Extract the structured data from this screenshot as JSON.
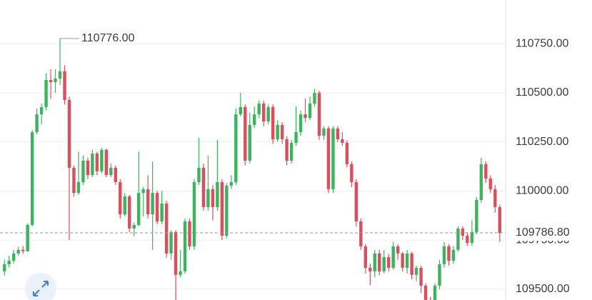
{
  "chart_data": {
    "type": "candlestick",
    "up_color": "#3bb55c",
    "down_color": "#e14c5c",
    "ylim": [
      109445,
      110972
    ],
    "yticks": [
      {
        "value": 109500,
        "label": "109500.00"
      },
      {
        "value": 109750,
        "label": "109750.00"
      },
      {
        "value": 110000,
        "label": "110000.00"
      },
      {
        "value": 110250,
        "label": "110250.00"
      },
      {
        "value": 110500,
        "label": "110500.00"
      },
      {
        "value": 110750,
        "label": "110750.00"
      }
    ],
    "grid": true,
    "current_price": {
      "value": 109786.8,
      "label": "109786.80"
    },
    "high_annotation": {
      "value": 110776,
      "label": "110776.00"
    },
    "open": [
      109591,
      109627,
      109645,
      109682,
      109700,
      109693,
      109827,
      110299,
      110390,
      110427,
      110565,
      110554,
      110572,
      110609,
      110463,
      110118,
      109990,
      110045,
      110154,
      110081,
      110190,
      110100,
      110209,
      110081,
      110118,
      110045,
      109881,
      109972,
      109809,
      109827,
      109990,
      110009,
      109881,
      109990,
      109845,
      109936,
      109682,
      109791,
      109573,
      109591,
      109845,
      109718,
      110045,
      110118,
      109918,
      110009,
      109918,
      110045,
      109772,
      110027,
      110045,
      110390,
      110427,
      110154,
      110336,
      110390,
      110445,
      110354,
      110427,
      110263,
      110336,
      110263,
      110154,
      110245,
      110299,
      110390,
      110372,
      110445,
      110499,
      110281,
      110318,
      110009,
      110318,
      110263,
      110245,
      110136,
      110045,
      109845,
      109718,
      109609,
      109591,
      109682,
      109591,
      109663,
      109609,
      109718,
      109682,
      109609,
      109682,
      109573,
      109609,
      109518,
      109445,
      109409,
      109518,
      109627,
      109718,
      109645,
      109700,
      109809,
      109772,
      109736,
      109791,
      109954,
      110136,
      110063,
      110009,
      109918
    ],
    "high": [
      109650,
      109670,
      109700,
      109715,
      109720,
      109835,
      110310,
      110420,
      110445,
      110600,
      110620,
      110620,
      110776,
      110640,
      110480,
      110130,
      110200,
      110180,
      110170,
      110210,
      110200,
      110220,
      110215,
      110140,
      110130,
      110060,
      109990,
      109980,
      109840,
      110200,
      110020,
      110080,
      110150,
      110000,
      110000,
      109950,
      109800,
      109800,
      109700,
      109860,
      109860,
      110060,
      110270,
      110140,
      110180,
      110030,
      110260,
      110060,
      110040,
      110080,
      110420,
      110500,
      110440,
      110400,
      110430,
      110460,
      110460,
      110440,
      110440,
      110360,
      110350,
      110280,
      110260,
      110430,
      110410,
      110470,
      110480,
      110520,
      110510,
      110330,
      110330,
      110330,
      110330,
      110300,
      110260,
      110150,
      110060,
      109860,
      109730,
      109630,
      109700,
      109700,
      109700,
      109680,
      109740,
      109730,
      109690,
      109700,
      109690,
      109620,
      109620,
      109530,
      109460,
      109530,
      109650,
      109740,
      109730,
      109720,
      109820,
      109820,
      109790,
      109850,
      109970,
      110170,
      110150,
      110080,
      110030,
      109930
    ],
    "low": [
      109570,
      109610,
      109630,
      109670,
      109680,
      109690,
      109820,
      110290,
      110340,
      110410,
      110470,
      110500,
      110540,
      110440,
      109750,
      109970,
      109980,
      110030,
      110060,
      110070,
      110080,
      110090,
      110070,
      110070,
      110030,
      109860,
      109870,
      109790,
      109770,
      109820,
      109870,
      109860,
      109700,
      109830,
      109830,
      109660,
      109650,
      109380,
      109560,
      109580,
      109700,
      109700,
      110030,
      109900,
      109900,
      109850,
      109900,
      109750,
      109760,
      110010,
      110030,
      110380,
      110130,
      110140,
      110320,
      110370,
      110330,
      110340,
      110240,
      110250,
      110240,
      110130,
      110140,
      110230,
      110280,
      110350,
      110360,
      110430,
      110260,
      110260,
      109990,
      109990,
      110250,
      110230,
      110120,
      110020,
      109820,
      109700,
      109580,
      109520,
      109560,
      109570,
      109580,
      109590,
      109600,
      109650,
      109590,
      109580,
      109550,
      109540,
      109480,
      109420,
      109380,
      109390,
      109500,
      109610,
      109620,
      109630,
      109690,
      109750,
      109720,
      109720,
      109780,
      109940,
      110040,
      109990,
      109890,
      109740
    ],
    "close": [
      109627,
      109645,
      109682,
      109700,
      109693,
      109827,
      110299,
      110390,
      110427,
      110565,
      110554,
      110572,
      110609,
      110463,
      110118,
      109990,
      110045,
      110154,
      110081,
      110190,
      110100,
      110209,
      110081,
      110118,
      110045,
      109881,
      109972,
      109809,
      109827,
      109990,
      110009,
      109881,
      109990,
      109845,
      109936,
      109682,
      109791,
      109573,
      109591,
      109845,
      109718,
      110045,
      110118,
      109918,
      110009,
      109918,
      110045,
      109772,
      110027,
      110045,
      110390,
      110427,
      110154,
      110336,
      110390,
      110445,
      110354,
      110427,
      110263,
      110336,
      110263,
      110154,
      110245,
      110299,
      110390,
      110372,
      110445,
      110499,
      110281,
      110318,
      110009,
      110318,
      110263,
      110245,
      110136,
      110045,
      109845,
      109718,
      109609,
      109591,
      109682,
      109591,
      109663,
      109609,
      109718,
      109682,
      109609,
      109682,
      109573,
      109609,
      109518,
      109445,
      109409,
      109518,
      109627,
      109718,
      109645,
      109700,
      109809,
      109772,
      109736,
      109791,
      109954,
      110136,
      110063,
      110009,
      109918,
      109786.8
    ]
  }
}
